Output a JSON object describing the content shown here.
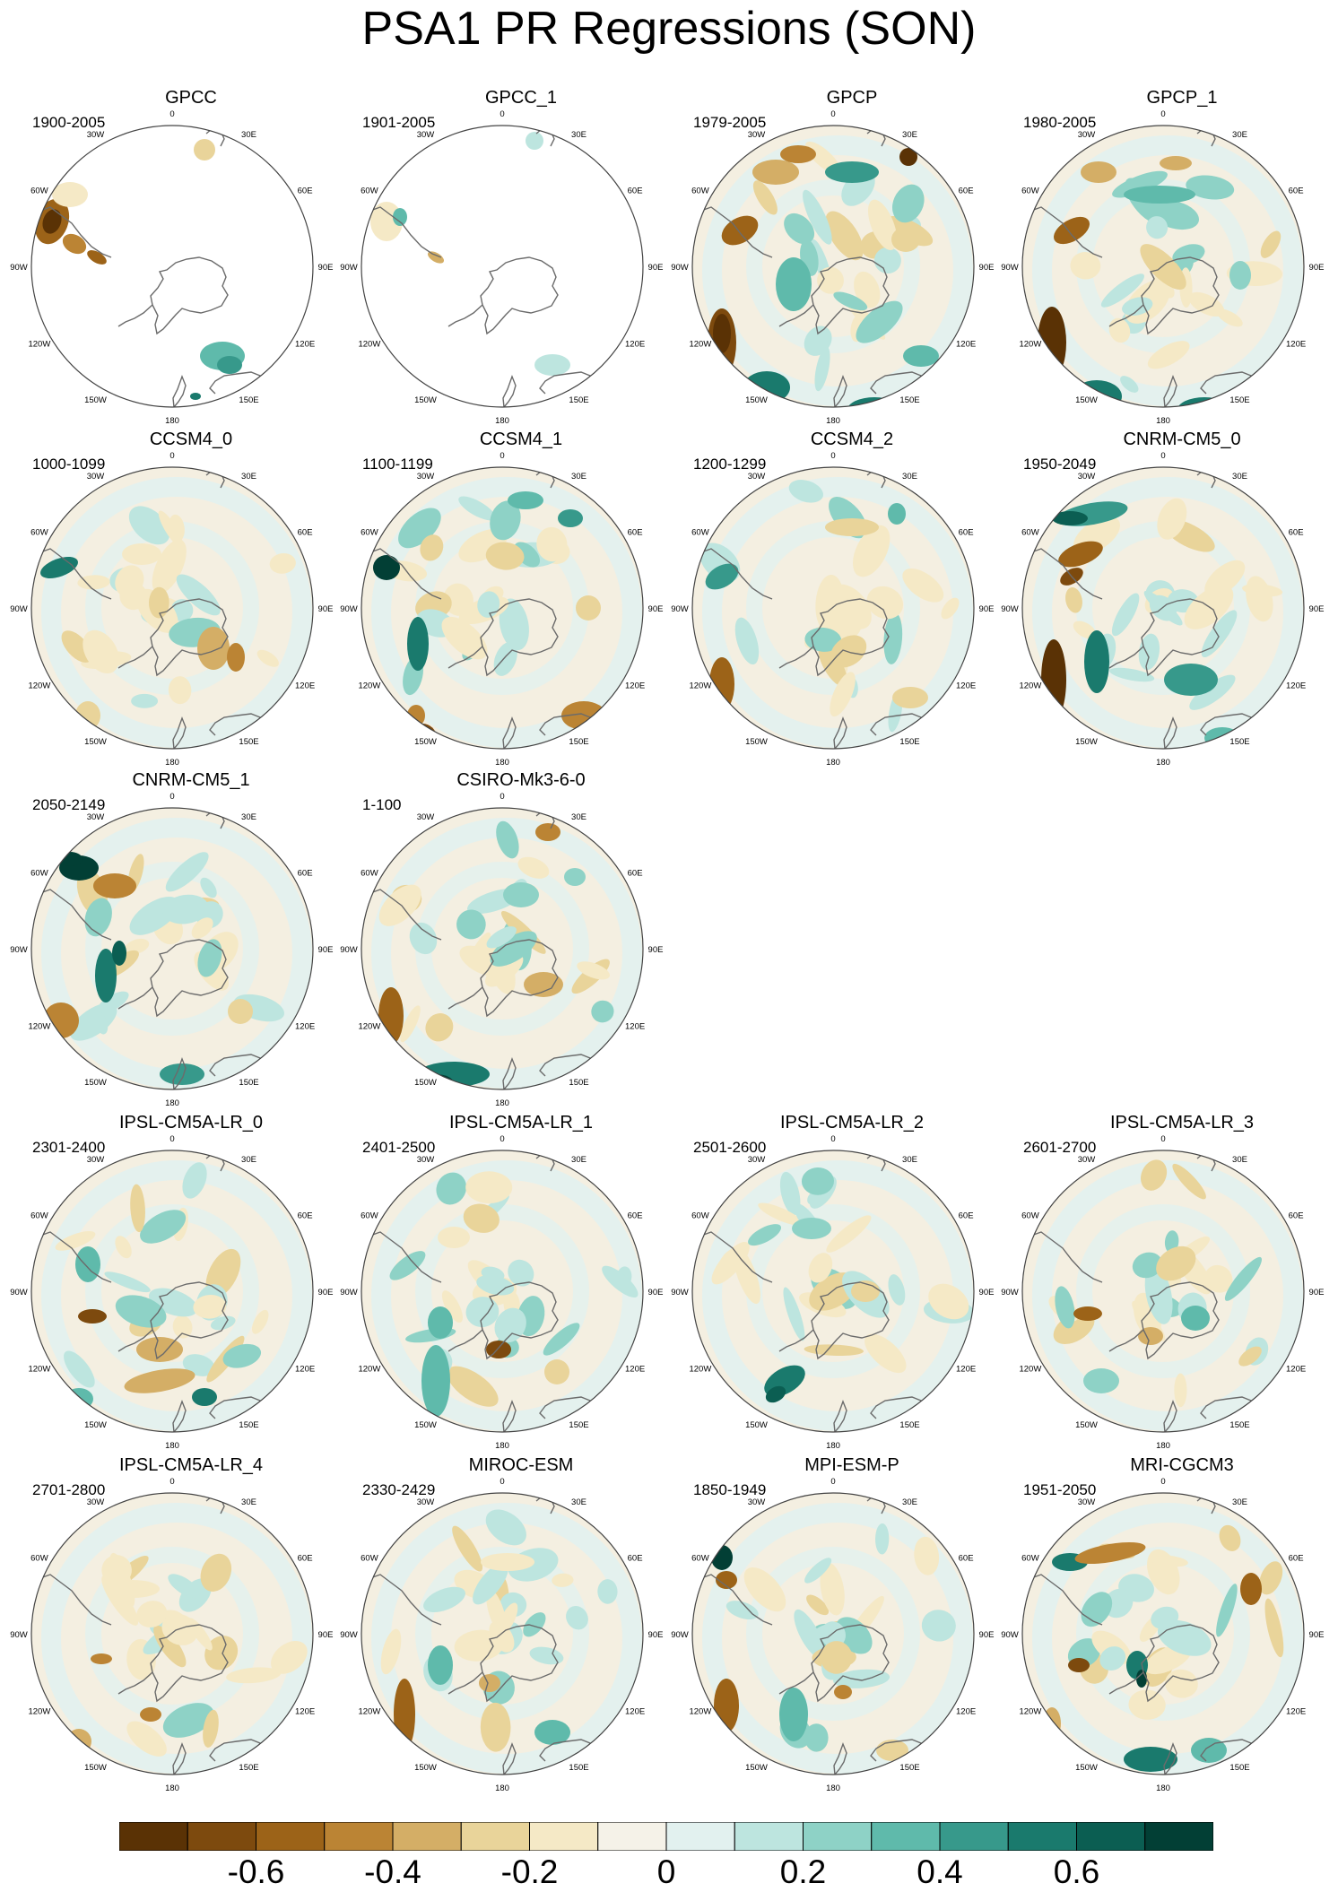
{
  "title": "PSA1 PR Regressions (SON)",
  "map_labels": {
    "lon_ticks": [
      "0",
      "30E",
      "60E",
      "90E",
      "120E",
      "150E",
      "180",
      "150W",
      "120W",
      "90W",
      "60W",
      "30W"
    ]
  },
  "panels": [
    {
      "title": "GPCC",
      "period": "1900-2005",
      "coverage": "land-only",
      "pattern": 0
    },
    {
      "title": "GPCC_1",
      "period": "1901-2005",
      "coverage": "land-only",
      "pattern": 1
    },
    {
      "title": "GPCP",
      "period": "1979-2005",
      "coverage": "full",
      "pattern": 2
    },
    {
      "title": "GPCP_1",
      "period": "1980-2005",
      "coverage": "full",
      "pattern": 3
    },
    {
      "title": "CCSM4_0",
      "period": "1000-1099",
      "coverage": "full",
      "pattern": 4
    },
    {
      "title": "CCSM4_1",
      "period": "1100-1199",
      "coverage": "full",
      "pattern": 5
    },
    {
      "title": "CCSM4_2",
      "period": "1200-1299",
      "coverage": "full",
      "pattern": 6
    },
    {
      "title": "CNRM-CM5_0",
      "period": "1950-2049",
      "coverage": "full",
      "pattern": 7
    },
    {
      "title": "CNRM-CM5_1",
      "period": "2050-2149",
      "coverage": "full",
      "pattern": 8
    },
    {
      "title": "CSIRO-Mk3-6-0",
      "period": "1-100",
      "coverage": "full",
      "pattern": 9
    },
    {
      "title": "IPSL-CM5A-LR_0",
      "period": "2301-2400",
      "coverage": "full",
      "pattern": 10
    },
    {
      "title": "IPSL-CM5A-LR_1",
      "period": "2401-2500",
      "coverage": "full",
      "pattern": 11
    },
    {
      "title": "IPSL-CM5A-LR_2",
      "period": "2501-2600",
      "coverage": "full",
      "pattern": 12
    },
    {
      "title": "IPSL-CM5A-LR_3",
      "period": "2601-2700",
      "coverage": "full",
      "pattern": 13
    },
    {
      "title": "IPSL-CM5A-LR_4",
      "period": "2701-2800",
      "coverage": "full",
      "pattern": 14
    },
    {
      "title": "MIROC-ESM",
      "period": "2330-2429",
      "coverage": "full",
      "pattern": 15
    },
    {
      "title": "MPI-ESM-P",
      "period": "1850-1949",
      "coverage": "full",
      "pattern": 16
    },
    {
      "title": "MRI-CGCM3",
      "period": "1951-2050",
      "coverage": "full",
      "pattern": 17
    }
  ],
  "colorbar": {
    "colors": [
      "#5a3205",
      "#7d4a0e",
      "#9c6318",
      "#bb8434",
      "#d4ae66",
      "#e9d49a",
      "#f5e9c6",
      "#f5f2e8",
      "#e2f1ef",
      "#bde5df",
      "#8ed2c6",
      "#5fbaab",
      "#37998b",
      "#1a7a6d",
      "#0b5e52",
      "#023f35"
    ],
    "labels": [
      "-0.6",
      "-0.4",
      "-0.2",
      "0",
      "0.2",
      "0.4",
      "0.6"
    ],
    "label_values": [
      -0.6,
      -0.4,
      -0.2,
      0,
      0.2,
      0.4,
      0.6
    ]
  }
}
